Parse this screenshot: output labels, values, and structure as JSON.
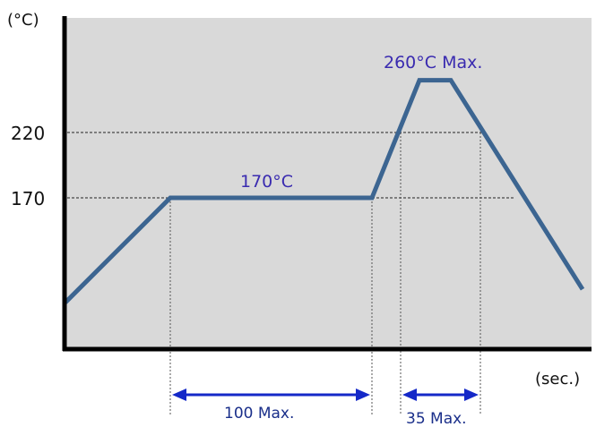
{
  "chart_data": {
    "type": "line",
    "title": "",
    "y_unit_label": "(°C)",
    "x_unit_label": "(sec.)",
    "yticks": [
      {
        "value": 220,
        "label": "220"
      },
      {
        "value": 170,
        "label": "170"
      }
    ],
    "series": [
      {
        "line_color": "#3c6591",
        "points": [
          {
            "phase": "start",
            "temp": 90
          },
          {
            "phase": "preheat_start",
            "temp": 170
          },
          {
            "phase": "preheat_end",
            "temp": 170
          },
          {
            "phase": "peak_start",
            "temp": 260
          },
          {
            "phase": "peak_end",
            "temp": 260
          },
          {
            "phase": "end",
            "temp": 100
          }
        ]
      }
    ],
    "annotations": {
      "preheat_temp": "170°C",
      "peak_temp": "260°C Max."
    },
    "dimensions": [
      {
        "label": "100 Max.",
        "from": "preheat_start",
        "to": "preheat_end",
        "seconds": 100
      },
      {
        "label": "35 Max.",
        "from": "above_220_start",
        "to": "above_220_end",
        "seconds": 35
      }
    ],
    "colors": {
      "plot_background": "#d9d9d9",
      "line": "#3c6591",
      "dimension_arrow": "#1428c8",
      "annotation_text": "#3a2bb0"
    },
    "grid": "dashed reference lines at 170 and 220"
  }
}
